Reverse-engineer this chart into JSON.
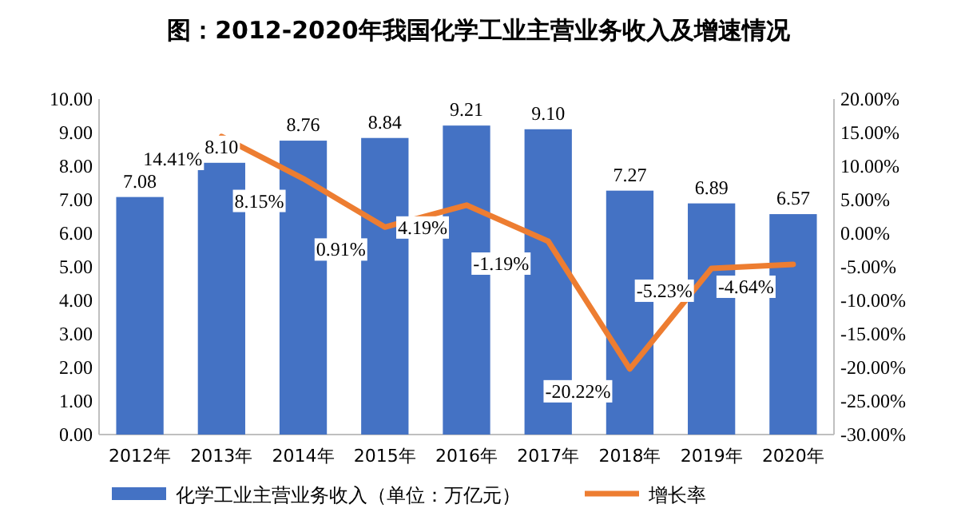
{
  "chart_data": {
    "type": "bar",
    "title": "图：2012-2020年我国化学工业主营业务收入及增速情况",
    "categories": [
      "2012年",
      "2013年",
      "2014年",
      "2015年",
      "2016年",
      "2017年",
      "2018年",
      "2019年",
      "2020年"
    ],
    "series": [
      {
        "name": "化学工业主营业务收入（单位：万亿元）",
        "type": "bar",
        "color": "#4472c4",
        "values": [
          7.08,
          8.1,
          8.76,
          8.84,
          9.21,
          9.1,
          7.27,
          6.89,
          6.57
        ],
        "value_labels": [
          "7.08",
          "8.10",
          "8.76",
          "8.84",
          "9.21",
          "9.10",
          "7.27",
          "6.89",
          "6.57"
        ]
      },
      {
        "name": "增长率",
        "type": "line",
        "axis": "y2",
        "color": "#ed7d31",
        "values": [
          null,
          14.41,
          8.15,
          0.91,
          4.19,
          -1.19,
          -20.22,
          -5.23,
          -4.64
        ],
        "value_labels": [
          null,
          "14.41%",
          "8.15%",
          "0.91%",
          "4.19%",
          "-1.19%",
          "-20.22%",
          "-5.23%",
          "-4.64%"
        ]
      }
    ],
    "ylim": [
      0,
      10
    ],
    "yticks": [
      {
        "value": 0,
        "label": "0.00"
      },
      {
        "value": 1,
        "label": "1.00"
      },
      {
        "value": 2,
        "label": "2.00"
      },
      {
        "value": 3,
        "label": "3.00"
      },
      {
        "value": 4,
        "label": "4.00"
      },
      {
        "value": 5,
        "label": "5.00"
      },
      {
        "value": 6,
        "label": "6.00"
      },
      {
        "value": 7,
        "label": "7.00"
      },
      {
        "value": 8,
        "label": "8.00"
      },
      {
        "value": 9,
        "label": "9.00"
      },
      {
        "value": 10,
        "label": "10.00"
      }
    ],
    "y2lim": [
      -30,
      20
    ],
    "y2ticks": [
      {
        "value": -30,
        "label": "-30.00%"
      },
      {
        "value": -25,
        "label": "-25.00%"
      },
      {
        "value": -20,
        "label": "-20.00%"
      },
      {
        "value": -15,
        "label": "-15.00%"
      },
      {
        "value": -10,
        "label": "-10.00%"
      },
      {
        "value": -5,
        "label": "-5.00%"
      },
      {
        "value": 0,
        "label": "0.00%"
      },
      {
        "value": 5,
        "label": "5.00%"
      },
      {
        "value": 10,
        "label": "10.00%"
      },
      {
        "value": 15,
        "label": "15.00%"
      },
      {
        "value": 20,
        "label": "20.00%"
      }
    ],
    "legend": "bottom",
    "grid": false
  }
}
